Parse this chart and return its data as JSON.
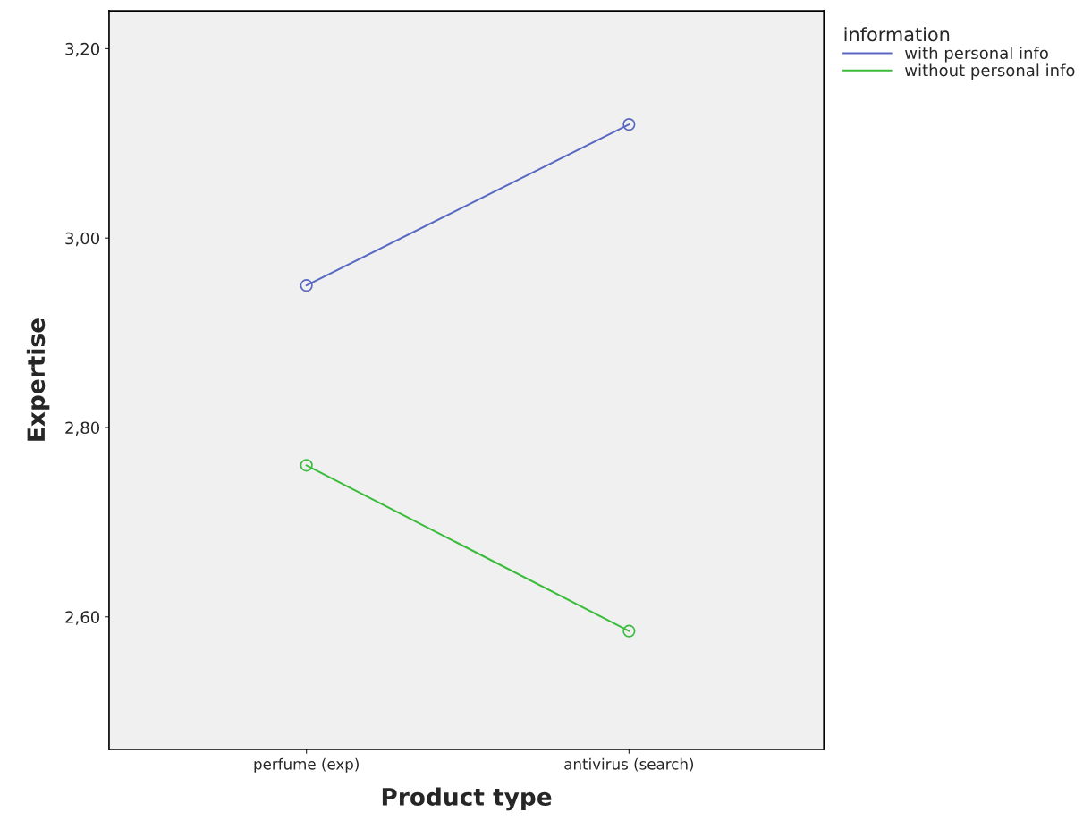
{
  "chart_data": {
    "type": "line",
    "xlabel": "Product type",
    "ylabel": "Expertise",
    "legend_title": "information",
    "categories": [
      "perfume (exp)",
      "antivirus (search)"
    ],
    "series": [
      {
        "name": "with personal info",
        "color": "#5a68c4",
        "values": [
          2.95,
          3.12
        ]
      },
      {
        "name": "without personal info",
        "color": "#3cbc3c",
        "values": [
          2.76,
          2.585
        ]
      }
    ],
    "ylim": [
      2.46,
      3.24
    ],
    "yticks": [
      {
        "value": 2.6,
        "label": "2,60"
      },
      {
        "value": 2.8,
        "label": "2,80"
      },
      {
        "value": 3.0,
        "label": "3,00"
      },
      {
        "value": 3.2,
        "label": "3,20"
      }
    ],
    "marker": "circle",
    "line_style": "solid",
    "grid": false,
    "legend": "top right"
  }
}
